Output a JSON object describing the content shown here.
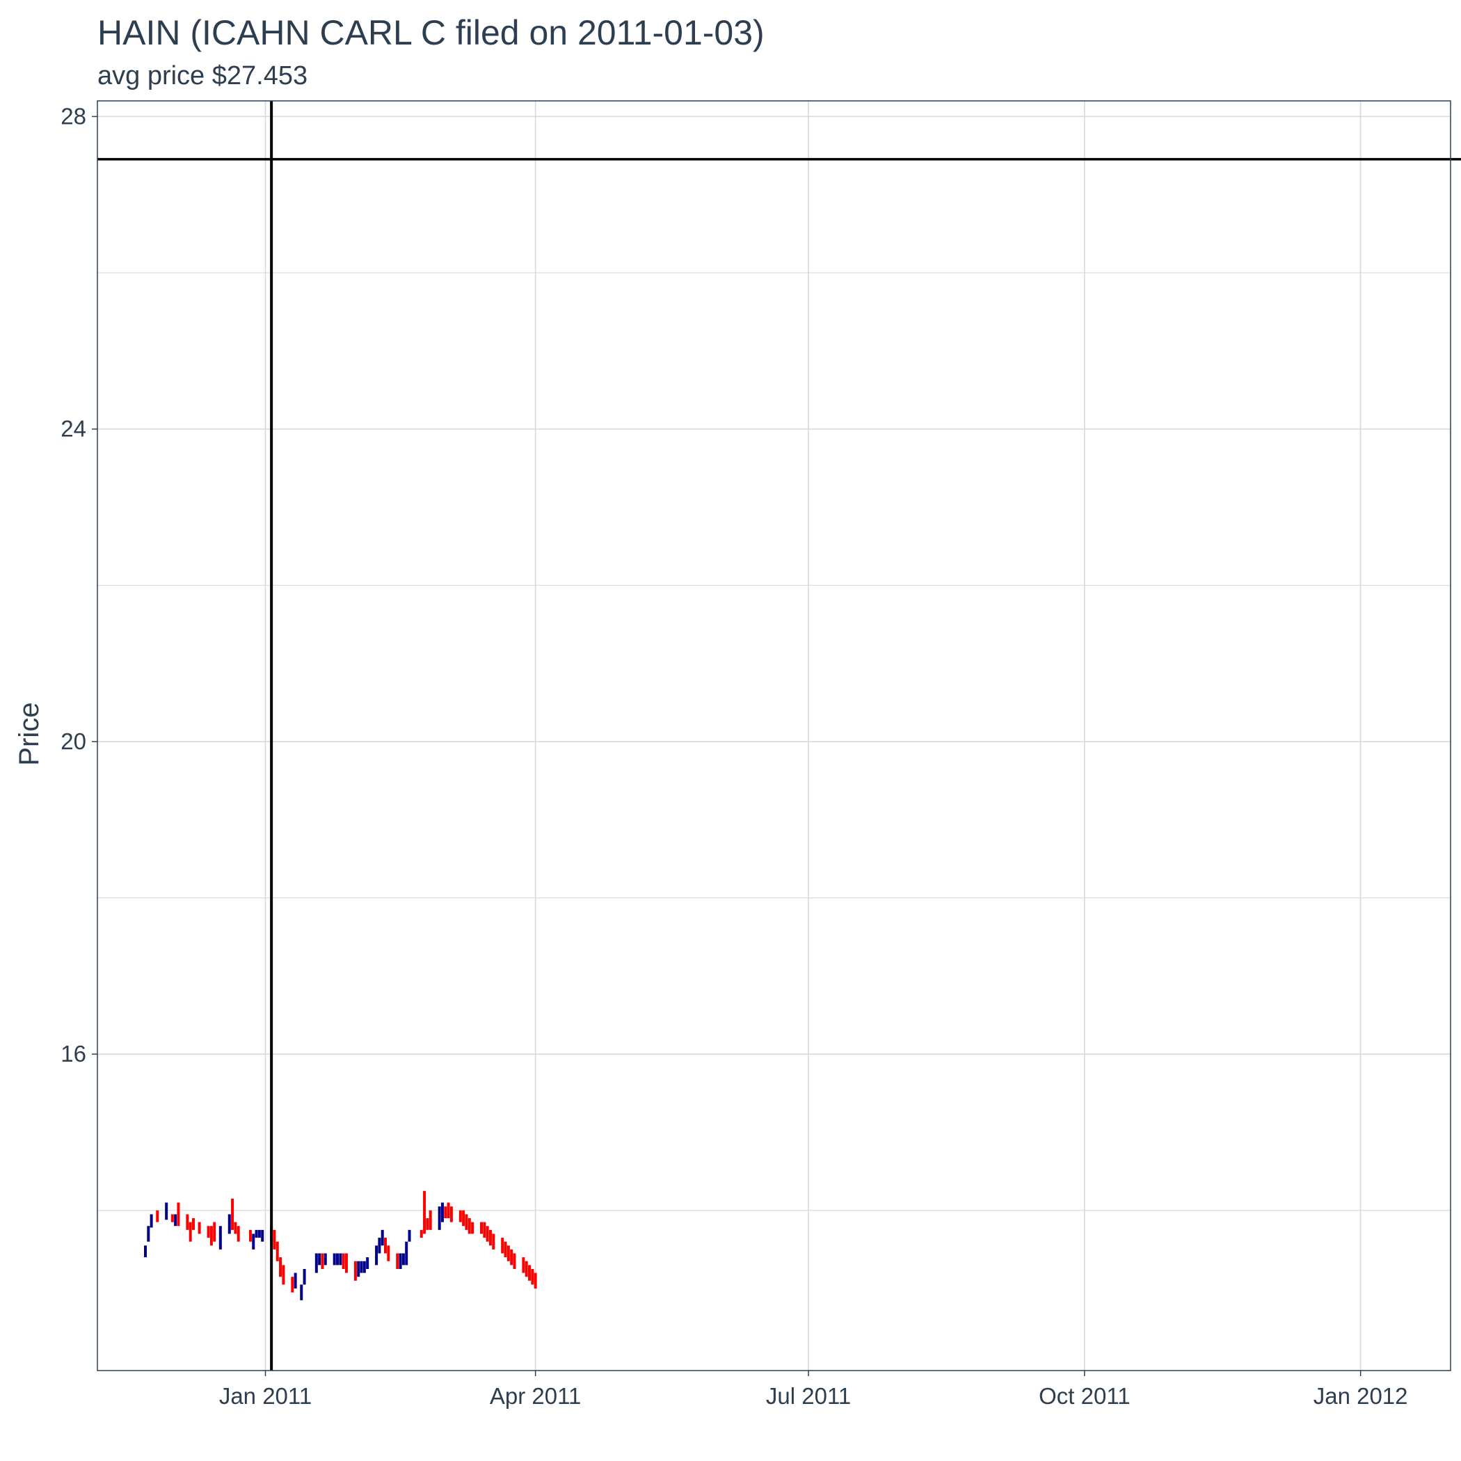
{
  "chart_data": {
    "type": "ohlc",
    "title": "HAIN (ICAHN CARL C filed on 2011-01-03)",
    "subtitle": "avg price $27.453",
    "xlabel": "",
    "ylabel": "Price",
    "y_ticks": [
      16,
      20,
      24,
      28
    ],
    "x_ticks": [
      {
        "date": "2011-01-01",
        "label": "Jan 2011"
      },
      {
        "date": "2011-04-01",
        "label": "Apr 2011"
      },
      {
        "date": "2011-07-01",
        "label": "Jul 2011"
      },
      {
        "date": "2011-10-01",
        "label": "Oct 2011"
      },
      {
        "date": "2012-01-01",
        "label": "Jan 2012"
      }
    ],
    "xlim": [
      "2010-11-06",
      "2012-01-31"
    ],
    "ylim": [
      11.95,
      28.2
    ],
    "grid": true,
    "reference_lines": {
      "horizontal_price": 27.453,
      "vertical_date": "2011-01-03"
    },
    "colors": {
      "up": "#00008b",
      "down": "#ff0000",
      "reference": "#000000",
      "grid": "#d9d9d9",
      "text": "#2c3e50"
    },
    "bars": [
      {
        "date": "2010-11-22",
        "low": 13.4,
        "high": 13.55,
        "dir": "up"
      },
      {
        "date": "2010-11-23",
        "low": 13.6,
        "high": 13.8,
        "dir": "up"
      },
      {
        "date": "2010-11-24",
        "low": 13.78,
        "high": 13.95,
        "dir": "up"
      },
      {
        "date": "2010-11-26",
        "low": 13.85,
        "high": 14.0,
        "dir": "down"
      },
      {
        "date": "2010-11-29",
        "low": 13.88,
        "high": 14.1,
        "dir": "up"
      },
      {
        "date": "2010-12-01",
        "low": 13.85,
        "high": 13.95,
        "dir": "down"
      },
      {
        "date": "2010-12-02",
        "low": 13.8,
        "high": 13.95,
        "dir": "up"
      },
      {
        "date": "2010-12-03",
        "low": 13.8,
        "high": 14.1,
        "dir": "down"
      },
      {
        "date": "2010-12-06",
        "low": 13.75,
        "high": 13.95,
        "dir": "down"
      },
      {
        "date": "2010-12-07",
        "low": 13.6,
        "high": 13.85,
        "dir": "down"
      },
      {
        "date": "2010-12-08",
        "low": 13.75,
        "high": 13.9,
        "dir": "down"
      },
      {
        "date": "2010-12-10",
        "low": 13.7,
        "high": 13.85,
        "dir": "down"
      },
      {
        "date": "2010-12-13",
        "low": 13.65,
        "high": 13.8,
        "dir": "down"
      },
      {
        "date": "2010-12-14",
        "low": 13.55,
        "high": 13.8,
        "dir": "down"
      },
      {
        "date": "2010-12-15",
        "low": 13.6,
        "high": 13.85,
        "dir": "down"
      },
      {
        "date": "2010-12-17",
        "low": 13.5,
        "high": 13.8,
        "dir": "up"
      },
      {
        "date": "2010-12-20",
        "low": 13.7,
        "high": 13.95,
        "dir": "up"
      },
      {
        "date": "2010-12-21",
        "low": 13.75,
        "high": 14.15,
        "dir": "down"
      },
      {
        "date": "2010-12-22",
        "low": 13.7,
        "high": 13.85,
        "dir": "down"
      },
      {
        "date": "2010-12-23",
        "low": 13.6,
        "high": 13.8,
        "dir": "down"
      },
      {
        "date": "2010-12-27",
        "low": 13.6,
        "high": 13.75,
        "dir": "down"
      },
      {
        "date": "2010-12-28",
        "low": 13.5,
        "high": 13.7,
        "dir": "up"
      },
      {
        "date": "2010-12-29",
        "low": 13.65,
        "high": 13.75,
        "dir": "up"
      },
      {
        "date": "2010-12-30",
        "low": 13.65,
        "high": 13.75,
        "dir": "up"
      },
      {
        "date": "2010-12-31",
        "low": 13.6,
        "high": 13.75,
        "dir": "up"
      },
      {
        "date": "2011-01-03",
        "low": 13.6,
        "high": 13.8,
        "dir": "down"
      },
      {
        "date": "2011-01-04",
        "low": 13.5,
        "high": 13.75,
        "dir": "down"
      },
      {
        "date": "2011-01-05",
        "low": 13.35,
        "high": 13.6,
        "dir": "down"
      },
      {
        "date": "2011-01-06",
        "low": 13.15,
        "high": 13.4,
        "dir": "down"
      },
      {
        "date": "2011-01-07",
        "low": 13.05,
        "high": 13.3,
        "dir": "down"
      },
      {
        "date": "2011-01-10",
        "low": 12.95,
        "high": 13.15,
        "dir": "down"
      },
      {
        "date": "2011-01-11",
        "low": 13.0,
        "high": 13.2,
        "dir": "up"
      },
      {
        "date": "2011-01-13",
        "low": 12.85,
        "high": 13.05,
        "dir": "up"
      },
      {
        "date": "2011-01-14",
        "low": 13.05,
        "high": 13.25,
        "dir": "up"
      },
      {
        "date": "2011-01-18",
        "low": 13.2,
        "high": 13.45,
        "dir": "up"
      },
      {
        "date": "2011-01-19",
        "low": 13.3,
        "high": 13.45,
        "dir": "up"
      },
      {
        "date": "2011-01-20",
        "low": 13.25,
        "high": 13.45,
        "dir": "down"
      },
      {
        "date": "2011-01-21",
        "low": 13.3,
        "high": 13.45,
        "dir": "up"
      },
      {
        "date": "2011-01-24",
        "low": 13.3,
        "high": 13.45,
        "dir": "up"
      },
      {
        "date": "2011-01-25",
        "low": 13.3,
        "high": 13.45,
        "dir": "up"
      },
      {
        "date": "2011-01-26",
        "low": 13.3,
        "high": 13.45,
        "dir": "up"
      },
      {
        "date": "2011-01-27",
        "low": 13.25,
        "high": 13.45,
        "dir": "down"
      },
      {
        "date": "2011-01-28",
        "low": 13.2,
        "high": 13.45,
        "dir": "down"
      },
      {
        "date": "2011-01-31",
        "low": 13.1,
        "high": 13.35,
        "dir": "down"
      },
      {
        "date": "2011-02-01",
        "low": 13.15,
        "high": 13.35,
        "dir": "up"
      },
      {
        "date": "2011-02-02",
        "low": 13.2,
        "high": 13.35,
        "dir": "up"
      },
      {
        "date": "2011-02-03",
        "low": 13.2,
        "high": 13.35,
        "dir": "up"
      },
      {
        "date": "2011-02-04",
        "low": 13.25,
        "high": 13.4,
        "dir": "up"
      },
      {
        "date": "2011-02-07",
        "low": 13.3,
        "high": 13.55,
        "dir": "up"
      },
      {
        "date": "2011-02-08",
        "low": 13.45,
        "high": 13.65,
        "dir": "up"
      },
      {
        "date": "2011-02-09",
        "low": 13.55,
        "high": 13.75,
        "dir": "up"
      },
      {
        "date": "2011-02-10",
        "low": 13.45,
        "high": 13.65,
        "dir": "down"
      },
      {
        "date": "2011-02-11",
        "low": 13.35,
        "high": 13.55,
        "dir": "down"
      },
      {
        "date": "2011-02-14",
        "low": 13.25,
        "high": 13.45,
        "dir": "down"
      },
      {
        "date": "2011-02-15",
        "low": 13.25,
        "high": 13.45,
        "dir": "up"
      },
      {
        "date": "2011-02-16",
        "low": 13.3,
        "high": 13.45,
        "dir": "up"
      },
      {
        "date": "2011-02-17",
        "low": 13.3,
        "high": 13.6,
        "dir": "up"
      },
      {
        "date": "2011-02-18",
        "low": 13.6,
        "high": 13.75,
        "dir": "up"
      },
      {
        "date": "2011-02-22",
        "low": 13.65,
        "high": 13.75,
        "dir": "down"
      },
      {
        "date": "2011-02-23",
        "low": 13.7,
        "high": 14.25,
        "dir": "down"
      },
      {
        "date": "2011-02-24",
        "low": 13.75,
        "high": 13.9,
        "dir": "down"
      },
      {
        "date": "2011-02-25",
        "low": 13.75,
        "high": 14.0,
        "dir": "down"
      },
      {
        "date": "2011-02-28",
        "low": 13.75,
        "high": 14.05,
        "dir": "up"
      },
      {
        "date": "2011-03-01",
        "low": 13.85,
        "high": 14.1,
        "dir": "up"
      },
      {
        "date": "2011-03-02",
        "low": 13.9,
        "high": 14.05,
        "dir": "down"
      },
      {
        "date": "2011-03-03",
        "low": 13.9,
        "high": 14.1,
        "dir": "down"
      },
      {
        "date": "2011-03-04",
        "low": 13.85,
        "high": 14.05,
        "dir": "down"
      },
      {
        "date": "2011-03-07",
        "low": 13.85,
        "high": 14.0,
        "dir": "down"
      },
      {
        "date": "2011-03-08",
        "low": 13.8,
        "high": 14.0,
        "dir": "down"
      },
      {
        "date": "2011-03-09",
        "low": 13.75,
        "high": 13.95,
        "dir": "down"
      },
      {
        "date": "2011-03-10",
        "low": 13.7,
        "high": 13.9,
        "dir": "down"
      },
      {
        "date": "2011-03-11",
        "low": 13.7,
        "high": 13.85,
        "dir": "down"
      },
      {
        "date": "2011-03-14",
        "low": 13.7,
        "high": 13.85,
        "dir": "down"
      },
      {
        "date": "2011-03-15",
        "low": 13.65,
        "high": 13.85,
        "dir": "down"
      },
      {
        "date": "2011-03-16",
        "low": 13.6,
        "high": 13.8,
        "dir": "down"
      },
      {
        "date": "2011-03-17",
        "low": 13.55,
        "high": 13.75,
        "dir": "down"
      },
      {
        "date": "2011-03-18",
        "low": 13.5,
        "high": 13.7,
        "dir": "down"
      },
      {
        "date": "2011-03-21",
        "low": 13.45,
        "high": 13.65,
        "dir": "down"
      },
      {
        "date": "2011-03-22",
        "low": 13.4,
        "high": 13.6,
        "dir": "down"
      },
      {
        "date": "2011-03-23",
        "low": 13.35,
        "high": 13.55,
        "dir": "down"
      },
      {
        "date": "2011-03-24",
        "low": 13.3,
        "high": 13.5,
        "dir": "down"
      },
      {
        "date": "2011-03-25",
        "low": 13.25,
        "high": 13.45,
        "dir": "down"
      },
      {
        "date": "2011-03-28",
        "low": 13.2,
        "high": 13.4,
        "dir": "down"
      },
      {
        "date": "2011-03-29",
        "low": 13.15,
        "high": 13.35,
        "dir": "down"
      },
      {
        "date": "2011-03-30",
        "low": 13.1,
        "high": 13.3,
        "dir": "down"
      },
      {
        "date": "2011-03-31",
        "low": 13.05,
        "high": 13.25,
        "dir": "down"
      },
      {
        "date": "2011-04-01",
        "low": 13.0,
        "high": 13.2,
        "dir": "down"
      }
    ]
  }
}
